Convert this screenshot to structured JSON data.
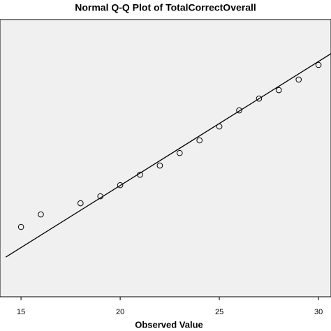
{
  "chart_data": {
    "type": "scatter",
    "title": "Normal Q-Q Plot of TotalCorrectOverall",
    "x_label": "Observed Value",
    "x": [
      15,
      16,
      18,
      19,
      20,
      21,
      22,
      23,
      24,
      25,
      26,
      27,
      28,
      29,
      30
    ],
    "values": [
      16.66,
      17.67,
      18.57,
      19.13,
      20.03,
      20.87,
      21.61,
      22.62,
      23.64,
      24.76,
      26.06,
      27.01,
      27.69,
      28.54,
      29.72
    ],
    "color": "#000000",
    "reference_line": {
      "x": [
        14.23,
        30.63
      ],
      "y": [
        14.23,
        30.63
      ],
      "color": "#000000"
    },
    "xlim": [
      13.94,
      30.63
    ],
    "ylim": [
      11.03,
      33.38
    ],
    "xticks": [
      15,
      20,
      25,
      30
    ],
    "grid": false
  }
}
